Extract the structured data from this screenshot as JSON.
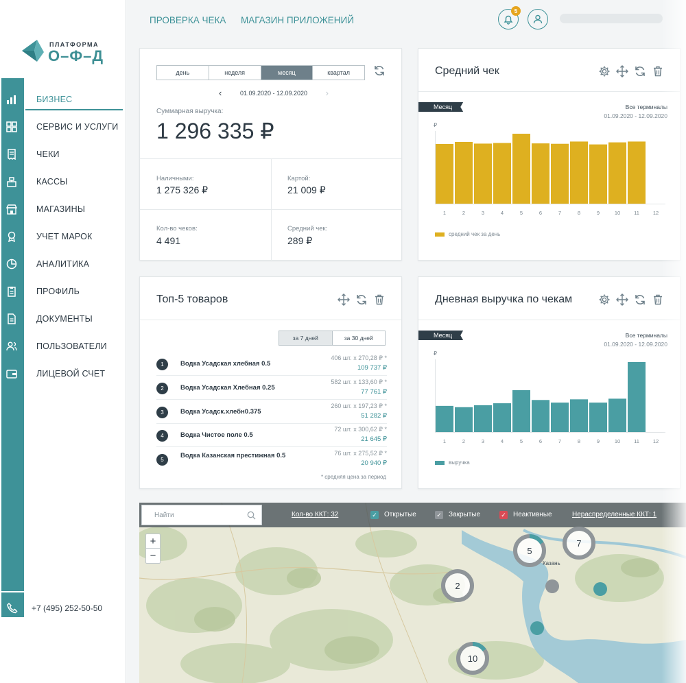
{
  "brand": {
    "line1": "ПЛАТФОРМА",
    "line2": "О–Ф–Д",
    "color": "#3e9298"
  },
  "sidebar": {
    "items": [
      {
        "label": "БИЗНЕС",
        "icon": "bar-chart-icon",
        "active": true
      },
      {
        "label": "СЕРВИС И УСЛУГИ",
        "icon": "grid-icon"
      },
      {
        "label": "ЧЕКИ",
        "icon": "receipt-icon"
      },
      {
        "label": "КАССЫ",
        "icon": "cash-register-icon"
      },
      {
        "label": "МАГАЗИНЫ",
        "icon": "store-icon"
      },
      {
        "label": "УЧЕТ МАРОК",
        "icon": "stamp-icon"
      },
      {
        "label": "АНАЛИТИКА",
        "icon": "pie-chart-icon"
      },
      {
        "label": "ПРОФИЛЬ",
        "icon": "clipboard-icon"
      },
      {
        "label": "ДОКУМЕНТЫ",
        "icon": "document-icon"
      },
      {
        "label": "ПОЛЬЗОВАТЕЛИ",
        "icon": "users-icon"
      },
      {
        "label": "ЛИЦЕВОЙ СЧЕТ",
        "icon": "wallet-icon"
      }
    ],
    "phone": "+7 (495) 252-50-50"
  },
  "topbar": {
    "links": [
      "ПРОВЕРКА ЧЕКА",
      "МАГАЗИН ПРИЛОЖЕНИЙ"
    ],
    "notifications": "5"
  },
  "revenue": {
    "periods": [
      "день",
      "неделя",
      "месяц",
      "квартал"
    ],
    "active_period": "месяц",
    "date_range": "01.09.2020 - 12.09.2020",
    "total_label": "Суммарная выручка:",
    "total_value": "1 296 335 ₽",
    "cash_label": "Наличными:",
    "cash_value": "1 275 326 ₽",
    "card_label": "Картой:",
    "card_value": "21 009 ₽",
    "count_label": "Кол-во чеков:",
    "count_value": "4 491",
    "avg_label": "Средний чек:",
    "avg_value": "289 ₽"
  },
  "avg_check": {
    "title": "Средний чек",
    "ribbon": "Месяц",
    "scope": "Все терминалы",
    "dates": "01.09.2020 - 12.09.2020",
    "unit": "₽",
    "legend": "средний чек за день",
    "color": "#deb020"
  },
  "top5": {
    "title": "Топ-5 товаров",
    "tabs": [
      "за 7 дней",
      "за 30 дней"
    ],
    "active_tab": "за 7 дней",
    "items": [
      {
        "n": "1",
        "name": "Водка Усадская хлебная 0.5",
        "qty": "406 шт. x 270,28 ₽ *",
        "total": "109 737 ₽"
      },
      {
        "n": "2",
        "name": "Водка Усадская Хлебная 0.25",
        "qty": "582 шт. x 133,60 ₽ *",
        "total": "77 761 ₽"
      },
      {
        "n": "3",
        "name": "Водка Усадск.хлебн0.375",
        "qty": "260 шт. x 197,23 ₽ *",
        "total": "51 282 ₽"
      },
      {
        "n": "4",
        "name": "Водка Чистое поле 0.5",
        "qty": "72 шт. x 300,62 ₽ *",
        "total": "21 645 ₽"
      },
      {
        "n": "5",
        "name": "Водка Казанская престижная 0.5",
        "qty": "76 шт. x 275,52 ₽ *",
        "total": "20 940 ₽"
      }
    ],
    "footnote": "* средняя цена за период"
  },
  "daily": {
    "title": "Дневная выручка по чекам",
    "ribbon": "Месяц",
    "scope": "Все терминалы",
    "dates": "01.09.2020 - 12.09.2020",
    "unit": "₽",
    "legend": "выручка",
    "color": "#4a9ea3"
  },
  "map": {
    "search_placeholder": "Найти",
    "kkt_count": "Кол-во ККТ: 32",
    "open_label": "Открытые",
    "closed_label": "Закрытые",
    "inactive_label": "Неактивные",
    "unassigned": "Нераспределенные ККТ: 1",
    "city": "Казань",
    "clusters": [
      "5",
      "7",
      "2",
      "10"
    ],
    "colors": {
      "open": "#4a9ea3",
      "closed": "#8f9599",
      "inactive": "#d94b55"
    }
  },
  "chart_data": [
    {
      "type": "bar",
      "title": "Средний чек",
      "categories": [
        "1",
        "2",
        "3",
        "4",
        "5",
        "6",
        "7",
        "8",
        "9",
        "10",
        "11",
        "12"
      ],
      "series": [
        {
          "name": "средний чек за день",
          "values": [
            290,
            300,
            292,
            295,
            340,
            293,
            291,
            302,
            288,
            298,
            302,
            0
          ]
        }
      ],
      "ylabel": "₽",
      "ylim": [
        0,
        340
      ],
      "grid": false,
      "legend": "bottom-left"
    },
    {
      "type": "bar",
      "title": "Дневная выручка по чекам",
      "categories": [
        "1",
        "2",
        "3",
        "4",
        "5",
        "6",
        "7",
        "8",
        "9",
        "10",
        "11",
        "12"
      ],
      "series": [
        {
          "name": "выручка",
          "values": [
            40,
            38,
            41,
            44,
            64,
            49,
            45,
            50,
            45,
            51,
            107,
            0
          ]
        }
      ],
      "ylabel": "₽",
      "ylim": [
        0,
        107
      ],
      "grid": false,
      "legend": "bottom-left"
    }
  ]
}
